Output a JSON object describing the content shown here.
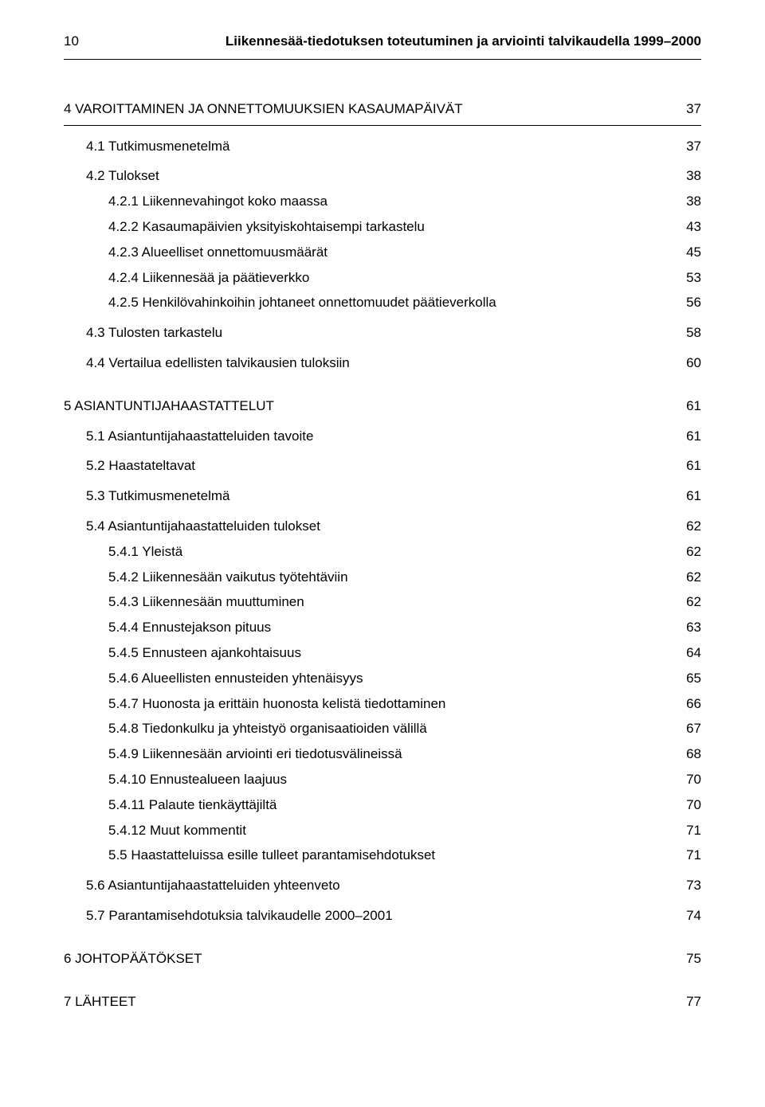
{
  "page_number": "10",
  "header_title": "Liikennesää-tiedotuksen toteutuminen ja arviointi talvikaudella 1999–2000",
  "toc": [
    {
      "level": 0,
      "label": "4   VAROITTAMINEN JA ONNETTOMUUKSIEN KASAUMAPÄIVÄT",
      "page": "37",
      "space": "big",
      "underline": true
    },
    {
      "level": 1,
      "label": "4.1 Tutkimusmenetelmä",
      "page": "37",
      "space": "small"
    },
    {
      "level": 1,
      "label": "4.2 Tulokset",
      "page": "38",
      "space": "small"
    },
    {
      "level": 2,
      "label": "4.2.1 Liikennevahingot koko maassa",
      "page": "38"
    },
    {
      "level": 2,
      "label": "4.2.2 Kasaumapäivien yksityiskohtaisempi tarkastelu",
      "page": "43"
    },
    {
      "level": 2,
      "label": "4.2.3 Alueelliset onnettomuusmäärät",
      "page": "45"
    },
    {
      "level": 2,
      "label": "4.2.4 Liikennesää ja päätieverkko",
      "page": "53"
    },
    {
      "level": 2,
      "label": "4.2.5 Henkilövahinkoihin johtaneet onnettomuudet päätieverkolla",
      "page": "56"
    },
    {
      "level": 1,
      "label": "4.3 Tulosten tarkastelu",
      "page": "58",
      "space": "small"
    },
    {
      "level": 1,
      "label": "4.4 Vertailua edellisten talvikausien tuloksiin",
      "page": "60",
      "space": "small"
    },
    {
      "level": 0,
      "label": "5   ASIANTUNTIJAHAASTATTELUT",
      "page": "61",
      "space": "big"
    },
    {
      "level": 1,
      "label": "5.1 Asiantuntijahaastatteluiden tavoite",
      "page": "61",
      "space": "small"
    },
    {
      "level": 1,
      "label": "5.2 Haastateltavat",
      "page": "61",
      "space": "small"
    },
    {
      "level": 1,
      "label": "5.3 Tutkimusmenetelmä",
      "page": "61",
      "space": "small"
    },
    {
      "level": 1,
      "label": "5.4 Asiantuntijahaastatteluiden tulokset",
      "page": "62",
      "space": "small"
    },
    {
      "level": 2,
      "label": "5.4.1 Yleistä",
      "page": "62"
    },
    {
      "level": 2,
      "label": "5.4.2 Liikennesään vaikutus työtehtäviin",
      "page": "62"
    },
    {
      "level": 2,
      "label": "5.4.3 Liikennesään muuttuminen",
      "page": "62"
    },
    {
      "level": 2,
      "label": "5.4.4 Ennustejakson pituus",
      "page": "63"
    },
    {
      "level": 2,
      "label": "5.4.5 Ennusteen ajankohtaisuus",
      "page": "64"
    },
    {
      "level": 2,
      "label": "5.4.6 Alueellisten ennusteiden yhtenäisyys",
      "page": "65"
    },
    {
      "level": 2,
      "label": "5.4.7 Huonosta ja erittäin huonosta kelistä tiedottaminen",
      "page": "66"
    },
    {
      "level": 2,
      "label": "5.4.8 Tiedonkulku ja yhteistyö organisaatioiden välillä",
      "page": "67"
    },
    {
      "level": 2,
      "label": "5.4.9 Liikennesään arviointi eri tiedotusvälineissä",
      "page": "68"
    },
    {
      "level": 2,
      "label": "5.4.10 Ennustealueen laajuus",
      "page": "70"
    },
    {
      "level": 2,
      "label": "5.4.11 Palaute tienkäyttäjiltä",
      "page": "70"
    },
    {
      "level": 2,
      "label": "5.4.12 Muut kommentit",
      "page": "71"
    },
    {
      "level": 2,
      "label": "5.5 Haastatteluissa esille tulleet parantamisehdotukset",
      "page": "71"
    },
    {
      "level": 1,
      "label": "5.6 Asiantuntijahaastatteluiden yhteenveto",
      "page": "73",
      "space": "small"
    },
    {
      "level": 1,
      "label": "5.7 Parantamisehdotuksia talvikaudelle 2000–2001",
      "page": "74",
      "space": "small"
    },
    {
      "level": 0,
      "label": "6   JOHTOPÄÄTÖKSET",
      "page": "75",
      "space": "big"
    },
    {
      "level": 0,
      "label": "7   LÄHTEET",
      "page": "77",
      "space": "big"
    }
  ]
}
